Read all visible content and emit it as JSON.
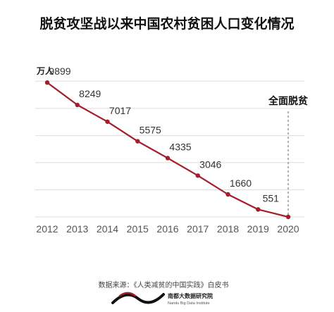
{
  "chart_data": {
    "type": "line",
    "title": "脱贫攻坚战以来中国农村贫困人口变化情况",
    "ylabel": "万人",
    "x": [
      "2012",
      "2013",
      "2014",
      "2015",
      "2016",
      "2017",
      "2018",
      "2019",
      "2020"
    ],
    "series": [
      {
        "values": [
          9899,
          8249,
          7017,
          5575,
          4335,
          3046,
          1660,
          551,
          0
        ]
      }
    ],
    "data_labels": [
      "9899",
      "8249",
      "7017",
      "5575",
      "4335",
      "3046",
      "1660",
      "551",
      ""
    ],
    "ylim": [
      0,
      11000
    ],
    "grid": "horizontal",
    "line_color": "#a31d2b",
    "grid_color": "#dddddd",
    "annotation": {
      "text": "全面脱贫",
      "at_x": "2020"
    }
  },
  "footer": {
    "source": "数据来源：《人类减贫的中国实践》白皮书",
    "logo_cn": "南都大数据研究院",
    "logo_en": "Nandu Big Data Institute",
    "logo_icon": "nandu-wave-logo"
  }
}
